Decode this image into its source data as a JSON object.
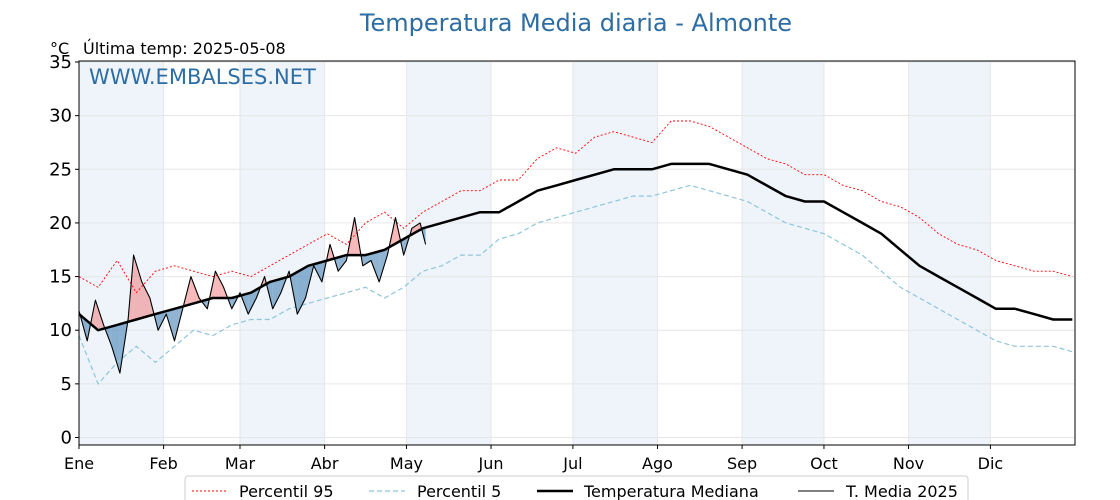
{
  "header": {
    "title": "Temperatura Media diaria - Almonte",
    "unit": "°C",
    "last_temp": "Última temp: 2025-05-08",
    "watermark": "WWW.EMBALSES.NET"
  },
  "colors": {
    "title": "#2e6da4",
    "p95": "#ff0000",
    "p5": "#8ec5dc",
    "median": "#000000",
    "current": "#000000",
    "above_fill": "#f08080",
    "below_fill": "#4682b4",
    "band": "#eef4fa"
  },
  "chart_data": {
    "type": "line",
    "title": "Temperatura Media diaria - Almonte",
    "ylabel": "°C",
    "ylim": [
      0,
      35
    ],
    "yticks": [
      0,
      5,
      10,
      15,
      20,
      25,
      30,
      35
    ],
    "grid": true,
    "legend_position": "bottom-center",
    "months": [
      "Ene",
      "Feb",
      "Mar",
      "Abr",
      "May",
      "Jun",
      "Jul",
      "Ago",
      "Sep",
      "Oct",
      "Nov",
      "Dic"
    ],
    "month_start_days": [
      1,
      32,
      60,
      91,
      121,
      152,
      182,
      213,
      244,
      274,
      305,
      335
    ],
    "series": [
      {
        "name": "Percentil 95",
        "style": "dotted",
        "x": [
          1,
          8,
          15,
          22,
          29,
          36,
          43,
          50,
          57,
          64,
          71,
          78,
          85,
          92,
          99,
          106,
          113,
          120,
          127,
          134,
          141,
          148,
          155,
          162,
          169,
          176,
          183,
          190,
          197,
          204,
          211,
          218,
          225,
          232,
          239,
          246,
          253,
          260,
          267,
          274,
          281,
          288,
          295,
          302,
          309,
          316,
          323,
          330,
          337,
          344,
          351,
          358,
          365
        ],
        "values": [
          15.0,
          14.0,
          16.5,
          13.5,
          15.5,
          16.0,
          15.5,
          15.0,
          15.5,
          15.0,
          16.0,
          17.0,
          18.0,
          19.0,
          18.0,
          20.0,
          21.0,
          19.5,
          21.0,
          22.0,
          23.0,
          23.0,
          24.0,
          24.0,
          26.0,
          27.0,
          26.5,
          28.0,
          28.5,
          28.0,
          27.5,
          29.5,
          29.5,
          29.0,
          28.0,
          27.0,
          26.0,
          25.5,
          24.5,
          24.5,
          23.5,
          23.0,
          22.0,
          21.5,
          20.5,
          19.0,
          18.0,
          17.5,
          16.5,
          16.0,
          15.5,
          15.5,
          15.0
        ]
      },
      {
        "name": "Percentil 5",
        "style": "dashed",
        "x": [
          1,
          8,
          15,
          22,
          29,
          36,
          43,
          50,
          57,
          64,
          71,
          78,
          85,
          92,
          99,
          106,
          113,
          120,
          127,
          134,
          141,
          148,
          155,
          162,
          169,
          176,
          183,
          190,
          197,
          204,
          211,
          218,
          225,
          232,
          239,
          246,
          253,
          260,
          267,
          274,
          281,
          288,
          295,
          302,
          309,
          316,
          323,
          330,
          337,
          344,
          351,
          358,
          365
        ],
        "values": [
          9.5,
          5.0,
          7.0,
          8.5,
          7.0,
          8.5,
          10.0,
          9.5,
          10.5,
          11.0,
          11.0,
          12.0,
          12.5,
          13.0,
          13.5,
          14.0,
          13.0,
          14.0,
          15.5,
          16.0,
          17.0,
          17.0,
          18.5,
          19.0,
          20.0,
          20.5,
          21.0,
          21.5,
          22.0,
          22.5,
          22.5,
          23.0,
          23.5,
          23.0,
          22.5,
          22.0,
          21.0,
          20.0,
          19.5,
          19.0,
          18.0,
          17.0,
          15.5,
          14.0,
          13.0,
          12.0,
          11.0,
          10.0,
          9.0,
          8.5,
          8.5,
          8.5,
          8.0
        ]
      },
      {
        "name": "Temperatura Mediana",
        "style": "solid-thick",
        "x": [
          1,
          8,
          15,
          22,
          29,
          36,
          43,
          50,
          57,
          64,
          71,
          78,
          85,
          92,
          99,
          106,
          113,
          120,
          127,
          134,
          141,
          148,
          155,
          162,
          169,
          176,
          183,
          190,
          197,
          204,
          211,
          218,
          225,
          232,
          239,
          246,
          253,
          260,
          267,
          274,
          281,
          288,
          295,
          302,
          309,
          316,
          323,
          330,
          337,
          344,
          351,
          358,
          365
        ],
        "values": [
          11.5,
          10.0,
          10.5,
          11.0,
          11.5,
          12.0,
          12.5,
          13.0,
          13.0,
          13.5,
          14.5,
          15.0,
          16.0,
          16.5,
          17.0,
          17.0,
          17.5,
          18.5,
          19.5,
          20.0,
          20.5,
          21.0,
          21.0,
          22.0,
          23.0,
          23.5,
          24.0,
          24.5,
          25.0,
          25.0,
          25.0,
          25.5,
          25.5,
          25.5,
          25.0,
          24.5,
          23.5,
          22.5,
          22.0,
          22.0,
          21.0,
          20.0,
          19.0,
          17.5,
          16.0,
          15.0,
          14.0,
          13.0,
          12.0,
          12.0,
          11.5,
          11.0,
          11.0
        ]
      },
      {
        "name": "T. Media 2025",
        "style": "solid-thin",
        "x": [
          1,
          4,
          7,
          10,
          13,
          16,
          19,
          21,
          24,
          27,
          30,
          33,
          36,
          39,
          42,
          45,
          48,
          51,
          54,
          57,
          60,
          63,
          66,
          69,
          72,
          75,
          78,
          81,
          84,
          87,
          90,
          93,
          96,
          99,
          102,
          105,
          108,
          111,
          114,
          117,
          120,
          123,
          126,
          128
        ],
        "values": [
          11.8,
          9.0,
          12.8,
          10.5,
          8.5,
          6.0,
          11.0,
          17.0,
          14.5,
          13.0,
          10.0,
          11.5,
          9.0,
          12.0,
          15.0,
          13.0,
          12.0,
          15.5,
          14.0,
          12.0,
          13.5,
          11.5,
          13.0,
          15.0,
          12.0,
          13.5,
          15.5,
          11.5,
          13.0,
          16.0,
          14.5,
          18.0,
          15.5,
          16.5,
          20.5,
          16.0,
          16.5,
          14.5,
          17.0,
          20.5,
          17.0,
          19.5,
          20.0,
          18.0
        ]
      }
    ]
  },
  "legend": {
    "p95": "Percentil 95",
    "p5": "Percentil 5",
    "median": "Temperatura Mediana",
    "current": "T. Media 2025"
  }
}
